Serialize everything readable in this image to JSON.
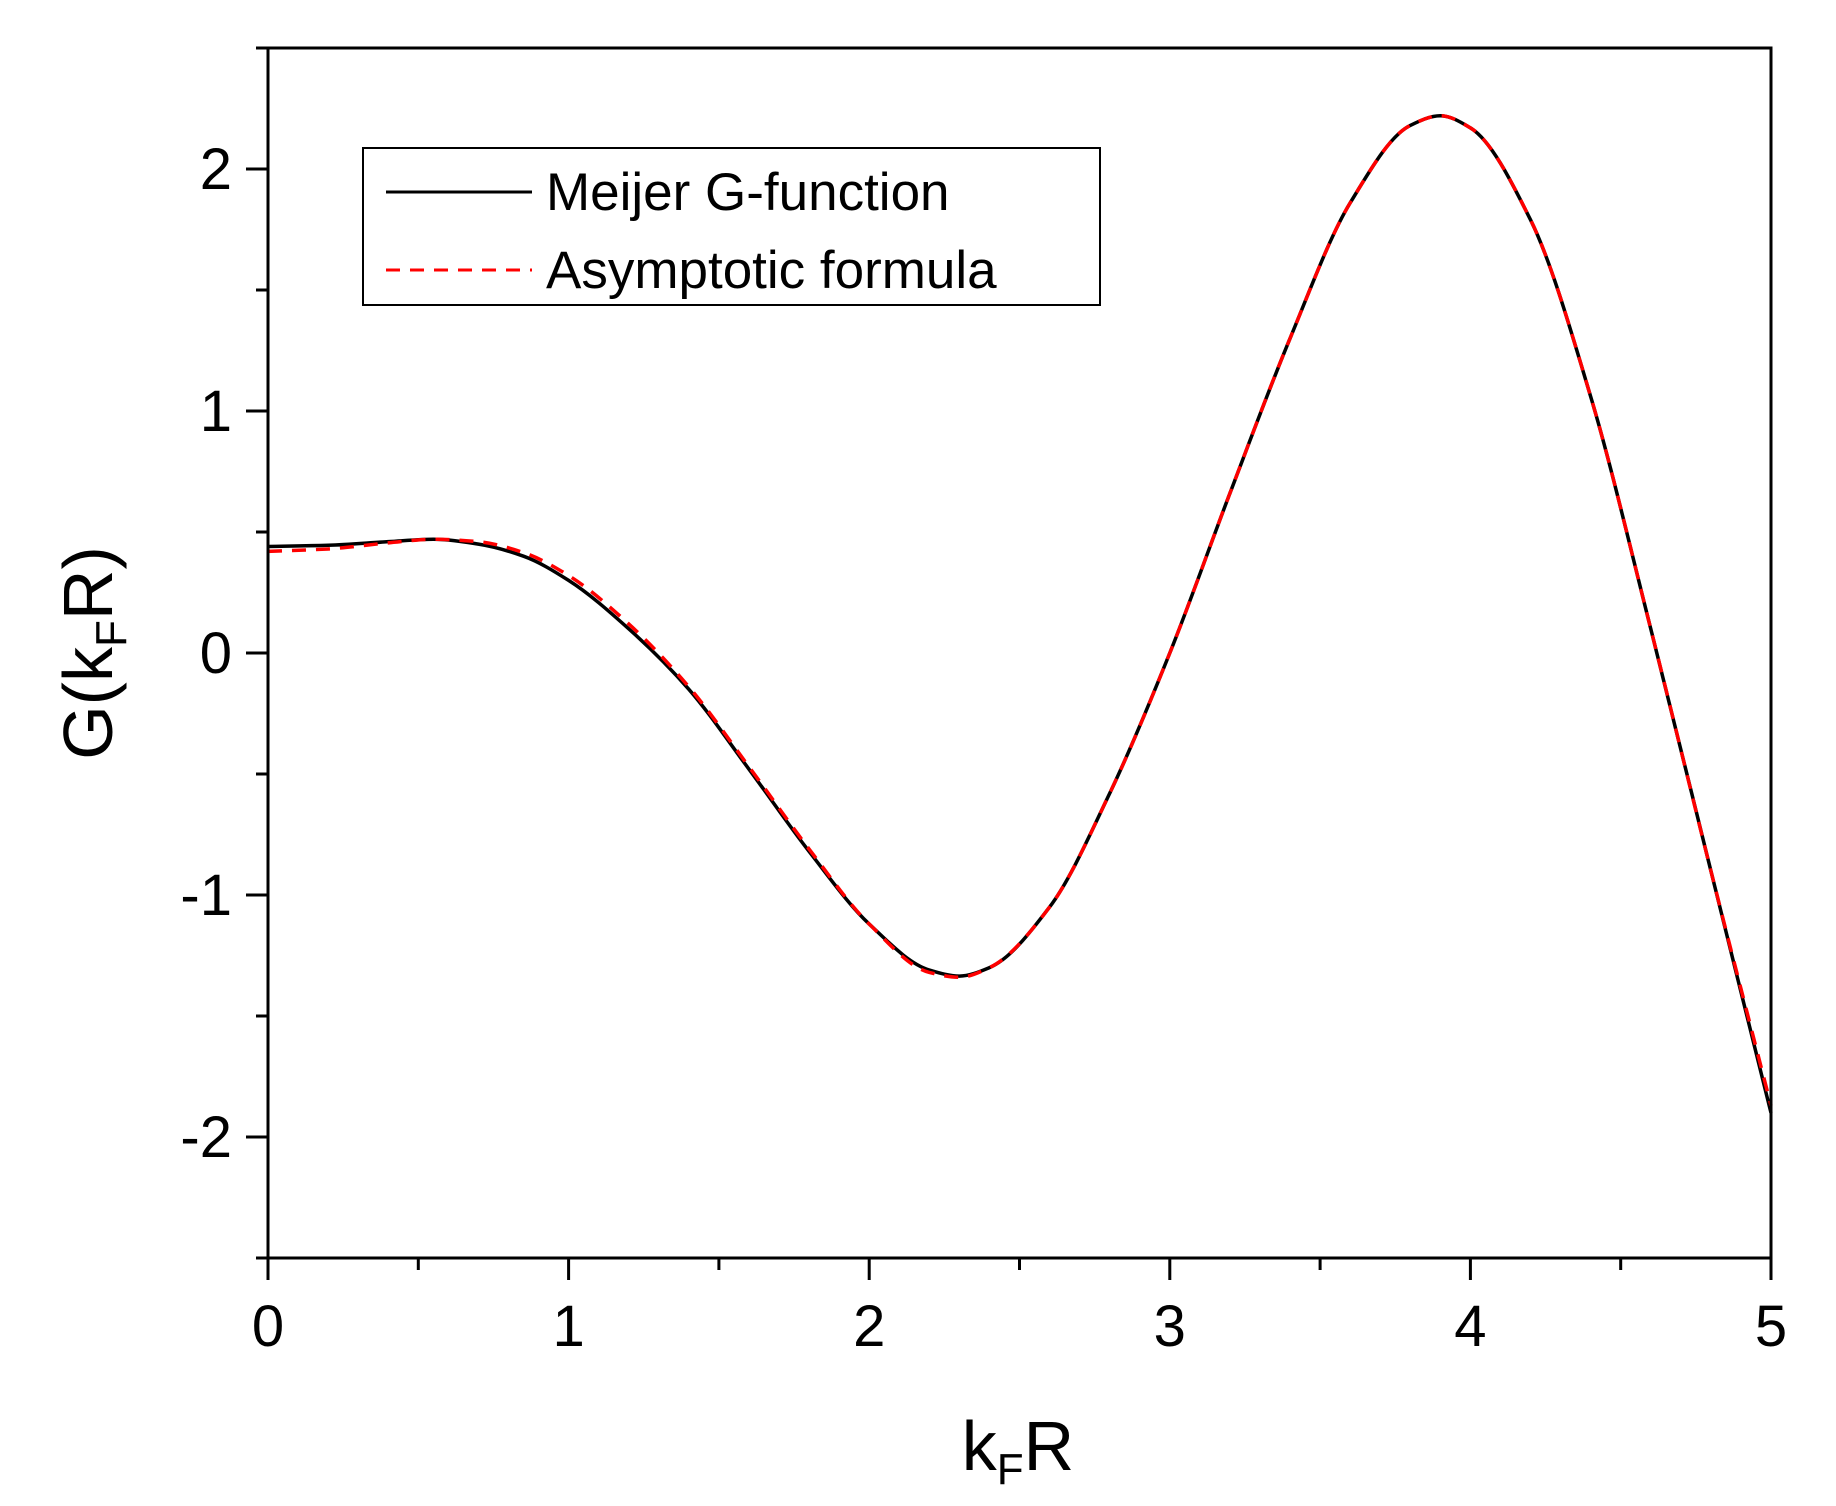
{
  "chart_data": {
    "type": "line",
    "title": "",
    "xlabel": {
      "main": "k",
      "sub": "F",
      "tail": "R"
    },
    "ylabel": {
      "main": "G(k",
      "sub": "F",
      "tail": "R)"
    },
    "xlim": [
      0,
      5
    ],
    "ylim": [
      -2.5,
      2.5
    ],
    "grid": false,
    "legend_position": "top-left",
    "x_major_ticks": [
      0,
      1,
      2,
      3,
      4,
      5
    ],
    "x_tick_labels": [
      "0",
      "1",
      "2",
      "3",
      "4",
      "5"
    ],
    "x_minor_ticks": [
      0.5,
      1.5,
      2.5,
      3.5,
      4.5
    ],
    "y_major_ticks": [
      -2,
      -1,
      0,
      1,
      2
    ],
    "y_tick_labels": [
      "-2",
      "-1",
      "0",
      "1",
      "2"
    ],
    "y_minor_ticks": [
      -2.5,
      -1.5,
      -0.5,
      0.5,
      1.5,
      2.5
    ],
    "series": [
      {
        "name": "Meijer G-function",
        "color": "#000000",
        "style": "solid",
        "x": [
          0,
          0.2,
          0.4,
          0.55,
          0.7,
          0.85,
          1.0,
          1.2,
          1.4,
          1.6,
          1.8,
          2.0,
          2.2,
          2.3,
          2.4,
          2.6,
          2.8,
          3.0,
          3.2,
          3.4,
          3.6,
          3.8,
          3.9,
          4.0,
          4.2,
          4.4,
          4.6,
          4.8,
          5.0
        ],
        "y": [
          0.44,
          0.445,
          0.46,
          0.47,
          0.45,
          0.4,
          0.3,
          0.1,
          -0.15,
          -0.48,
          -0.82,
          -1.12,
          -1.31,
          -1.335,
          -1.3,
          -1.05,
          -0.58,
          0.0,
          0.66,
          1.3,
          1.86,
          2.18,
          2.22,
          2.17,
          1.79,
          1.06,
          0.1,
          -0.9,
          -1.9
        ]
      },
      {
        "name": "Asymptotic formula",
        "color": "#ff0000",
        "style": "dashed",
        "x": [
          0,
          0.2,
          0.4,
          0.55,
          0.7,
          0.85,
          1.0,
          1.2,
          1.4,
          1.6,
          1.8,
          2.0,
          2.2,
          2.3,
          2.4,
          2.6,
          2.8,
          3.0,
          3.2,
          3.4,
          3.6,
          3.8,
          3.9,
          4.0,
          4.2,
          4.4,
          4.6,
          4.8,
          5.0
        ],
        "y": [
          0.42,
          0.43,
          0.455,
          0.47,
          0.46,
          0.415,
          0.32,
          0.12,
          -0.14,
          -0.47,
          -0.81,
          -1.12,
          -1.32,
          -1.34,
          -1.3,
          -1.05,
          -0.58,
          0.0,
          0.66,
          1.3,
          1.86,
          2.18,
          2.22,
          2.17,
          1.79,
          1.06,
          0.1,
          -0.9,
          -1.87
        ]
      }
    ]
  }
}
